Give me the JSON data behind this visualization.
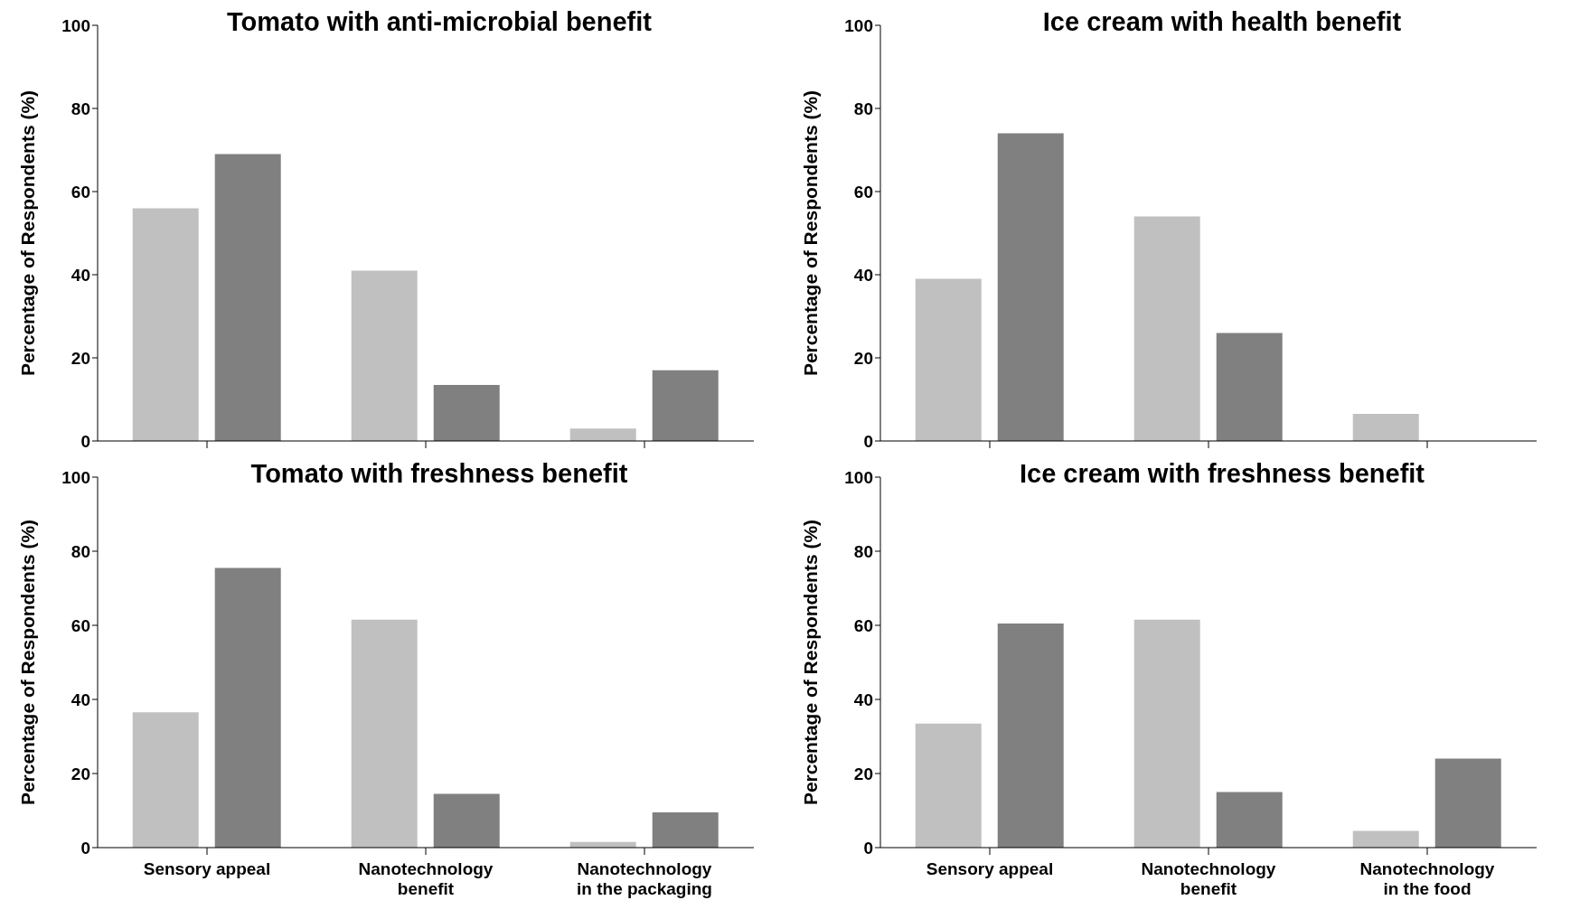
{
  "chart_data": [
    {
      "type": "bar",
      "title": "Tomato with anti-microbial benefit",
      "ylabel": "Percentage of Respondents (%)",
      "categories": [
        null,
        null,
        null
      ],
      "tick_labels": "y",
      "series": [
        {
          "color": "#c0c0c0",
          "values": [
            56,
            41,
            3
          ]
        },
        {
          "color": "#808080",
          "values": [
            69,
            13.5,
            17
          ]
        }
      ],
      "ylim": [
        0,
        100
      ],
      "yticks": [
        0,
        20,
        40,
        60,
        80,
        100
      ],
      "grid": false,
      "legend": false
    },
    {
      "type": "bar",
      "title": "Ice cream with health benefit",
      "ylabel": "Percentage of Respondents (%)",
      "categories": [
        null,
        null,
        null
      ],
      "tick_labels": "y",
      "series": [
        {
          "color": "#c0c0c0",
          "values": [
            39,
            54,
            6.5
          ]
        },
        {
          "color": "#808080",
          "values": [
            74,
            26,
            0
          ]
        }
      ],
      "ylim": [
        0,
        100
      ],
      "yticks": [
        0,
        20,
        40,
        60,
        80,
        100
      ],
      "grid": false,
      "legend": false
    },
    {
      "type": "bar",
      "title": "Tomato with freshness benefit",
      "ylabel": "Percentage of Respondents (%)",
      "categories": [
        "Sensory appeal",
        "Nanotechnology benefit",
        "Nanotechnology in the packaging"
      ],
      "series": [
        {
          "color": "#c0c0c0",
          "values": [
            36.5,
            61.5,
            1.5
          ]
        },
        {
          "color": "#808080",
          "values": [
            75.5,
            14.5,
            9.5
          ]
        }
      ],
      "ylim": [
        0,
        100
      ],
      "yticks": [
        0,
        20,
        40,
        60,
        80,
        100
      ],
      "grid": false,
      "legend": false
    },
    {
      "type": "bar",
      "title": "Ice cream with freshness benefit",
      "ylabel": "Percentage of Respondents (%)",
      "categories": [
        "Sensory appeal",
        "Nanotechnology benefit",
        "Nanotechnology in the food"
      ],
      "series": [
        {
          "color": "#c0c0c0",
          "values": [
            33.5,
            61.5,
            4.5
          ]
        },
        {
          "color": "#808080",
          "values": [
            60.5,
            15,
            24
          ]
        }
      ],
      "ylim": [
        0,
        100
      ],
      "yticks": [
        0,
        20,
        40,
        60,
        80,
        100
      ],
      "grid": false,
      "legend": false
    }
  ]
}
